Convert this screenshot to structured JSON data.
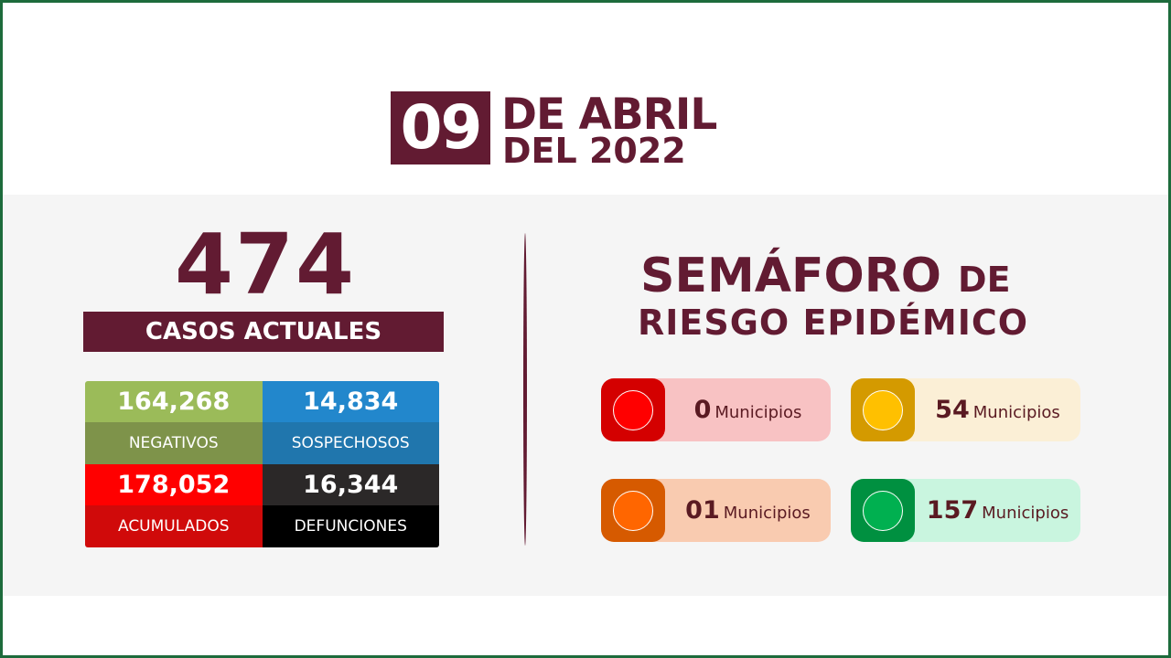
{
  "date": {
    "day": "09",
    "month": "DE ABRIL",
    "year": "DEL 2022"
  },
  "current_cases": {
    "value": "474",
    "label": "CASOS ACTUALES"
  },
  "stats": [
    {
      "value": "164,268",
      "label": "NEGATIVOS",
      "top": "#9bbb59",
      "bottom": "#7e934a"
    },
    {
      "value": "14,834",
      "label": "SOSPECHOSOS",
      "top": "#2287cc",
      "bottom": "#2076ad"
    },
    {
      "value": "178,052",
      "label": "ACUMULADOS",
      "top": "#ff0000",
      "bottom": "#d00a0a"
    },
    {
      "value": "16,344",
      "label": "DEFUNCIONES",
      "top": "#2b2828",
      "bottom": "#000000"
    }
  ],
  "semaforo": {
    "title": "SEMÁFORO",
    "title_de": "DE",
    "subtitle": "RIESGO EPIDÉMICO",
    "items": [
      {
        "color": "red",
        "count": "0",
        "unit": "Municipios",
        "sq": "#d40000",
        "dot": "#ff0000",
        "bg": "#f8c2c3"
      },
      {
        "color": "yellow",
        "count": "54",
        "unit": "Municipios",
        "sq": "#d49a00",
        "dot": "#ffc000",
        "bg": "#fbefd6"
      },
      {
        "color": "orange",
        "count": "01",
        "unit": "Municipios",
        "sq": "#d65a00",
        "dot": "#ff6600",
        "bg": "#f9cbb0"
      },
      {
        "color": "green",
        "count": "157",
        "unit": "Municipios",
        "sq": "#009040",
        "dot": "#00b050",
        "bg": "#c9f5df"
      }
    ]
  }
}
